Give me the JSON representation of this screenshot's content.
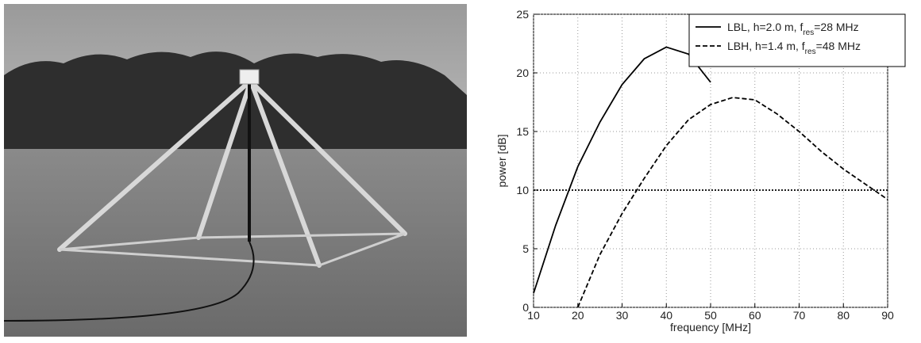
{
  "chart_data": {
    "type": "line",
    "xlabel": "frequency [MHz]",
    "ylabel": "power [dB]",
    "x": [
      10,
      15,
      20,
      25,
      30,
      35,
      40,
      45,
      50,
      55,
      60,
      65,
      70,
      75,
      80,
      85,
      90
    ],
    "series": [
      {
        "name": [
          "LBL, h=2.0 m, f",
          "res",
          "=28 MHz"
        ],
        "color": "#000000",
        "dash": "solid",
        "values": [
          1.2,
          7,
          12,
          15.8,
          19,
          21.2,
          22.2,
          21.6,
          19.2,
          null,
          null,
          null,
          null,
          null,
          null,
          null,
          null
        ]
      },
      {
        "name": [
          "LBH, h=1.4 m, f",
          "res",
          "=48 MHz"
        ],
        "color": "#000000",
        "dash": "dashed",
        "values": [
          null,
          null,
          0,
          4.5,
          8,
          11,
          13.8,
          16,
          17.3,
          17.9,
          17.7,
          16.5,
          15,
          13.3,
          11.8,
          10.5,
          9.2
        ]
      }
    ],
    "hline": 10,
    "xlim": [
      10,
      90
    ],
    "xticks": [
      10,
      20,
      30,
      40,
      50,
      60,
      70,
      80,
      90
    ],
    "ylim": [
      0,
      25
    ],
    "yticks": [
      0,
      5,
      10,
      15,
      20,
      25
    ],
    "grid": true,
    "legend": "upper right"
  }
}
